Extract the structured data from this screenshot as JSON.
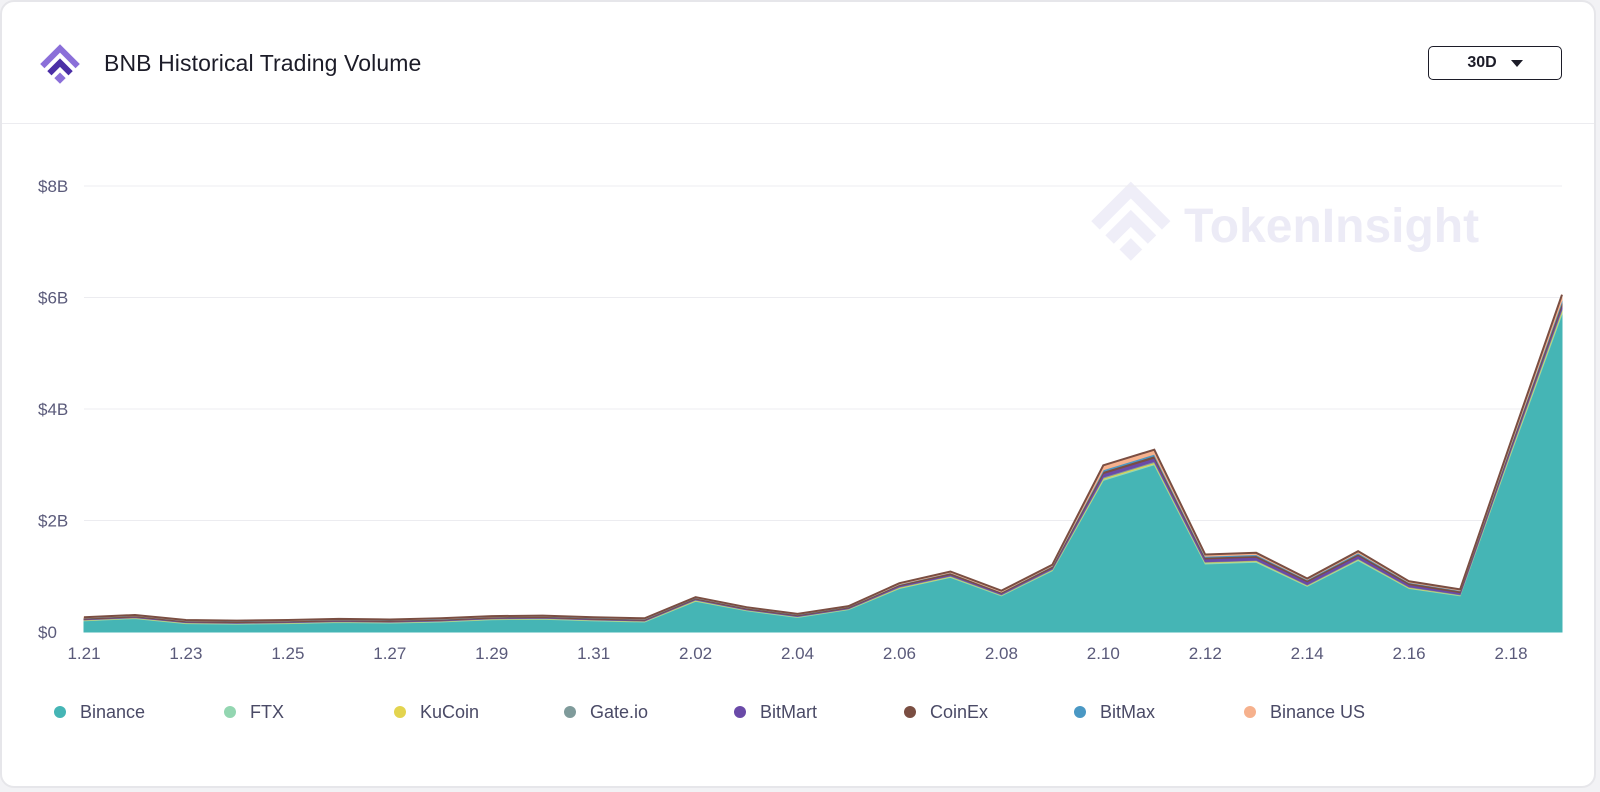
{
  "header": {
    "title": "BNB Historical Trading Volume",
    "period": "30D"
  },
  "watermark": "TokenInsight",
  "colors": {
    "logo_light": "#8b6fd9",
    "logo_dark": "#4b2fa6"
  },
  "chart_data": {
    "type": "area",
    "stacked": true,
    "x": [
      "1.21",
      "1.22",
      "1.23",
      "1.24",
      "1.25",
      "1.26",
      "1.27",
      "1.28",
      "1.29",
      "1.30",
      "1.31",
      "2.01",
      "2.02",
      "2.03",
      "2.04",
      "2.05",
      "2.06",
      "2.07",
      "2.08",
      "2.09",
      "2.10",
      "2.11",
      "2.12",
      "2.13",
      "2.14",
      "2.15",
      "2.16",
      "2.17",
      "2.18",
      "2.19"
    ],
    "x_tick_labels": [
      "1.21",
      "1.23",
      "1.25",
      "1.27",
      "1.29",
      "1.31",
      "2.02",
      "2.04",
      "2.06",
      "2.08",
      "2.10",
      "2.12",
      "2.14",
      "2.16",
      "2.18"
    ],
    "y_ticks": [
      0,
      2,
      4,
      6,
      8
    ],
    "y_tick_labels": [
      "$0",
      "$2B",
      "$4B",
      "$6B",
      "$8B"
    ],
    "ylim": [
      0,
      8
    ],
    "y_unit": "billion USD",
    "grid": true,
    "legend_position": "bottom",
    "series": [
      {
        "name": "Binance",
        "color": "#45b5b5",
        "values": [
          0.2,
          0.24,
          0.15,
          0.14,
          0.15,
          0.17,
          0.16,
          0.18,
          0.22,
          0.23,
          0.2,
          0.18,
          0.55,
          0.38,
          0.26,
          0.4,
          0.78,
          0.98,
          0.65,
          1.1,
          2.72,
          3.0,
          1.22,
          1.25,
          0.82,
          1.28,
          0.78,
          0.65,
          3.2,
          5.7
        ]
      },
      {
        "name": "FTX",
        "color": "#93d6b1",
        "values": [
          0.01,
          0.01,
          0.01,
          0.01,
          0.01,
          0.01,
          0.01,
          0.01,
          0.01,
          0.01,
          0.01,
          0.01,
          0.01,
          0.01,
          0.01,
          0.01,
          0.01,
          0.01,
          0.01,
          0.01,
          0.02,
          0.02,
          0.02,
          0.02,
          0.01,
          0.02,
          0.01,
          0.01,
          0.03,
          0.04
        ]
      },
      {
        "name": "KuCoin",
        "color": "#e3d44f",
        "values": [
          0.005,
          0.005,
          0.005,
          0.005,
          0.005,
          0.005,
          0.005,
          0.005,
          0.005,
          0.005,
          0.005,
          0.005,
          0.01,
          0.005,
          0.005,
          0.005,
          0.01,
          0.01,
          0.005,
          0.01,
          0.02,
          0.02,
          0.01,
          0.01,
          0.01,
          0.01,
          0.01,
          0.005,
          0.02,
          0.03
        ]
      },
      {
        "name": "Gate.io",
        "color": "#7f9b9b",
        "values": [
          0.005,
          0.005,
          0.005,
          0.005,
          0.005,
          0.005,
          0.005,
          0.005,
          0.005,
          0.005,
          0.005,
          0.005,
          0.01,
          0.005,
          0.005,
          0.005,
          0.01,
          0.01,
          0.01,
          0.01,
          0.02,
          0.02,
          0.01,
          0.01,
          0.01,
          0.01,
          0.01,
          0.01,
          0.02,
          0.03
        ]
      },
      {
        "name": "BitMart",
        "color": "#6a4aa8",
        "values": [
          0.01,
          0.01,
          0.01,
          0.01,
          0.01,
          0.01,
          0.01,
          0.01,
          0.01,
          0.01,
          0.01,
          0.01,
          0.01,
          0.01,
          0.01,
          0.01,
          0.02,
          0.02,
          0.02,
          0.02,
          0.06,
          0.06,
          0.05,
          0.05,
          0.05,
          0.05,
          0.04,
          0.03,
          0.04,
          0.05
        ]
      },
      {
        "name": "CoinEx",
        "color": "#7a4e42",
        "values": [
          0.02,
          0.02,
          0.02,
          0.02,
          0.02,
          0.02,
          0.02,
          0.02,
          0.02,
          0.02,
          0.02,
          0.02,
          0.02,
          0.02,
          0.02,
          0.02,
          0.02,
          0.03,
          0.02,
          0.03,
          0.04,
          0.04,
          0.03,
          0.03,
          0.03,
          0.03,
          0.03,
          0.03,
          0.04,
          0.06
        ]
      },
      {
        "name": "BitMax",
        "color": "#4a98c4",
        "values": [
          0.005,
          0.005,
          0.005,
          0.005,
          0.005,
          0.005,
          0.005,
          0.005,
          0.005,
          0.005,
          0.005,
          0.005,
          0.005,
          0.005,
          0.005,
          0.005,
          0.005,
          0.005,
          0.005,
          0.005,
          0.03,
          0.03,
          0.02,
          0.02,
          0.01,
          0.02,
          0.01,
          0.01,
          0.02,
          0.04
        ]
      },
      {
        "name": "Binance US",
        "color": "#f6b18d",
        "values": [
          0.01,
          0.01,
          0.01,
          0.01,
          0.01,
          0.01,
          0.01,
          0.01,
          0.01,
          0.01,
          0.01,
          0.01,
          0.01,
          0.01,
          0.01,
          0.01,
          0.02,
          0.02,
          0.02,
          0.02,
          0.08,
          0.08,
          0.03,
          0.03,
          0.02,
          0.03,
          0.02,
          0.02,
          0.05,
          0.1
        ]
      }
    ]
  }
}
